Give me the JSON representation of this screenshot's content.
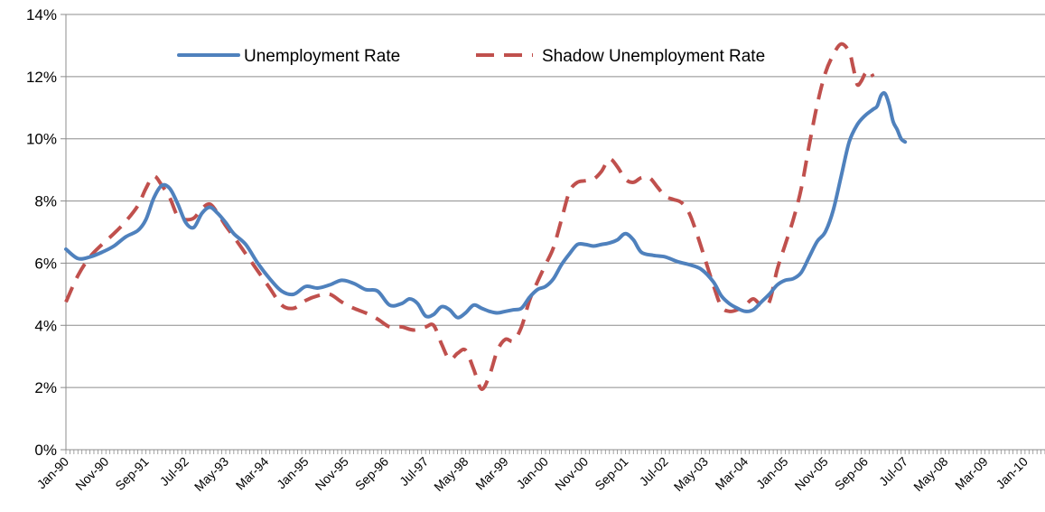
{
  "chart_data": {
    "type": "line",
    "title": "",
    "xlabel": "",
    "ylabel": "",
    "ylim": [
      0,
      14
    ],
    "y_ticks": [
      "0%",
      "2%",
      "4%",
      "6%",
      "8%",
      "10%",
      "12%",
      "14%"
    ],
    "x_tick_labels": [
      "Jan-90",
      "Nov-90",
      "Sep-91",
      "Jul-92",
      "May-93",
      "Mar-94",
      "Jan-95",
      "Nov-95",
      "Sep-96",
      "Jul-97",
      "May-98",
      "Mar-99",
      "Jan-00",
      "Nov-00",
      "Sep-01",
      "Jul-02",
      "May-03",
      "Mar-04",
      "Jan-05",
      "Nov-05",
      "Sep-06",
      "Jul-07",
      "May-08",
      "Mar-09",
      "Jan-10"
    ],
    "grid": "horizontal",
    "legend_position": "top",
    "x_index_note_months": 245,
    "series": [
      {
        "name": "Unemployment Rate",
        "color": "#4f81bd",
        "style": "solid",
        "points": [
          [
            0,
            6.45
          ],
          [
            3,
            6.15
          ],
          [
            6,
            6.2
          ],
          [
            9,
            6.35
          ],
          [
            12,
            6.55
          ],
          [
            15,
            6.85
          ],
          [
            18,
            7.05
          ],
          [
            20,
            7.4
          ],
          [
            22,
            8.1
          ],
          [
            24,
            8.5
          ],
          [
            26,
            8.4
          ],
          [
            28,
            7.9
          ],
          [
            30,
            7.3
          ],
          [
            32,
            7.15
          ],
          [
            34,
            7.6
          ],
          [
            36,
            7.8
          ],
          [
            38,
            7.6
          ],
          [
            40,
            7.3
          ],
          [
            42,
            6.95
          ],
          [
            45,
            6.6
          ],
          [
            48,
            6.0
          ],
          [
            51,
            5.5
          ],
          [
            54,
            5.1
          ],
          [
            57,
            5.0
          ],
          [
            60,
            5.25
          ],
          [
            63,
            5.2
          ],
          [
            66,
            5.3
          ],
          [
            69,
            5.45
          ],
          [
            72,
            5.35
          ],
          [
            75,
            5.15
          ],
          [
            78,
            5.1
          ],
          [
            81,
            4.65
          ],
          [
            84,
            4.7
          ],
          [
            86,
            4.85
          ],
          [
            88,
            4.7
          ],
          [
            90,
            4.3
          ],
          [
            92,
            4.35
          ],
          [
            94,
            4.6
          ],
          [
            96,
            4.5
          ],
          [
            98,
            4.25
          ],
          [
            100,
            4.4
          ],
          [
            102,
            4.65
          ],
          [
            104,
            4.55
          ],
          [
            106,
            4.45
          ],
          [
            108,
            4.4
          ],
          [
            110,
            4.45
          ],
          [
            112,
            4.5
          ],
          [
            114,
            4.55
          ],
          [
            116,
            4.9
          ],
          [
            118,
            5.15
          ],
          [
            120,
            5.25
          ],
          [
            122,
            5.5
          ],
          [
            124,
            5.95
          ],
          [
            126,
            6.3
          ],
          [
            128,
            6.6
          ],
          [
            130,
            6.6
          ],
          [
            132,
            6.55
          ],
          [
            134,
            6.6
          ],
          [
            136,
            6.65
          ],
          [
            138,
            6.75
          ],
          [
            140,
            6.95
          ],
          [
            142,
            6.75
          ],
          [
            144,
            6.35
          ],
          [
            147,
            6.25
          ],
          [
            150,
            6.2
          ],
          [
            153,
            6.05
          ],
          [
            156,
            5.95
          ],
          [
            159,
            5.8
          ],
          [
            162,
            5.4
          ],
          [
            164,
            4.95
          ],
          [
            166,
            4.7
          ],
          [
            168,
            4.55
          ],
          [
            170,
            4.45
          ],
          [
            172,
            4.5
          ],
          [
            174,
            4.75
          ],
          [
            176,
            5.0
          ],
          [
            178,
            5.3
          ],
          [
            180,
            5.45
          ],
          [
            182,
            5.5
          ],
          [
            184,
            5.7
          ],
          [
            186,
            6.2
          ],
          [
            188,
            6.7
          ],
          [
            190,
            7.0
          ],
          [
            192,
            7.7
          ],
          [
            194,
            8.8
          ],
          [
            196,
            9.9
          ],
          [
            198,
            10.45
          ],
          [
            200,
            10.75
          ],
          [
            202,
            10.95
          ],
          [
            203,
            11.05
          ],
          [
            204,
            11.4
          ],
          [
            205,
            11.45
          ],
          [
            206,
            11.1
          ],
          [
            207,
            10.55
          ],
          [
            208,
            10.3
          ],
          [
            209,
            10.0
          ],
          [
            210,
            9.9
          ]
        ]
      },
      {
        "name": "Shadow Unemployment Rate",
        "color": "#c0504d",
        "style": "dashed",
        "points": [
          [
            0,
            4.75
          ],
          [
            3,
            5.6
          ],
          [
            6,
            6.2
          ],
          [
            9,
            6.6
          ],
          [
            12,
            6.95
          ],
          [
            15,
            7.35
          ],
          [
            18,
            7.85
          ],
          [
            20,
            8.4
          ],
          [
            22,
            8.8
          ],
          [
            24,
            8.5
          ],
          [
            26,
            8.1
          ],
          [
            28,
            7.5
          ],
          [
            30,
            7.4
          ],
          [
            32,
            7.45
          ],
          [
            34,
            7.75
          ],
          [
            36,
            7.9
          ],
          [
            38,
            7.6
          ],
          [
            40,
            7.2
          ],
          [
            42,
            6.85
          ],
          [
            45,
            6.3
          ],
          [
            48,
            5.75
          ],
          [
            51,
            5.2
          ],
          [
            54,
            4.65
          ],
          [
            57,
            4.55
          ],
          [
            60,
            4.8
          ],
          [
            63,
            4.95
          ],
          [
            66,
            5.0
          ],
          [
            69,
            4.75
          ],
          [
            72,
            4.55
          ],
          [
            75,
            4.4
          ],
          [
            78,
            4.2
          ],
          [
            81,
            3.95
          ],
          [
            84,
            3.95
          ],
          [
            87,
            3.85
          ],
          [
            90,
            3.95
          ],
          [
            92,
            4.0
          ],
          [
            94,
            3.4
          ],
          [
            96,
            2.9
          ],
          [
            98,
            3.1
          ],
          [
            100,
            3.2
          ],
          [
            102,
            2.6
          ],
          [
            104,
            1.95
          ],
          [
            106,
            2.4
          ],
          [
            108,
            3.2
          ],
          [
            110,
            3.55
          ],
          [
            112,
            3.5
          ],
          [
            114,
            3.95
          ],
          [
            116,
            4.8
          ],
          [
            118,
            5.4
          ],
          [
            120,
            5.95
          ],
          [
            122,
            6.5
          ],
          [
            124,
            7.4
          ],
          [
            126,
            8.3
          ],
          [
            128,
            8.6
          ],
          [
            130,
            8.65
          ],
          [
            132,
            8.7
          ],
          [
            134,
            8.95
          ],
          [
            136,
            9.35
          ],
          [
            138,
            9.1
          ],
          [
            140,
            8.7
          ],
          [
            142,
            8.6
          ],
          [
            144,
            8.75
          ],
          [
            146,
            8.75
          ],
          [
            148,
            8.45
          ],
          [
            150,
            8.15
          ],
          [
            152,
            8.05
          ],
          [
            154,
            7.95
          ],
          [
            156,
            7.6
          ],
          [
            158,
            6.9
          ],
          [
            160,
            6.1
          ],
          [
            162,
            5.3
          ],
          [
            164,
            4.6
          ],
          [
            166,
            4.45
          ],
          [
            168,
            4.5
          ],
          [
            170,
            4.65
          ],
          [
            172,
            4.85
          ],
          [
            174,
            4.65
          ],
          [
            176,
            4.75
          ],
          [
            178,
            5.8
          ],
          [
            180,
            6.6
          ],
          [
            182,
            7.4
          ],
          [
            184,
            8.4
          ],
          [
            186,
            9.8
          ],
          [
            188,
            11.1
          ],
          [
            190,
            12.1
          ],
          [
            192,
            12.7
          ],
          [
            194,
            13.05
          ],
          [
            196,
            12.8
          ],
          [
            197,
            12.3
          ],
          [
            198,
            11.75
          ],
          [
            199,
            11.85
          ],
          [
            200,
            12.1
          ],
          [
            201,
            12.2
          ],
          [
            202,
            12.0
          ]
        ]
      }
    ]
  }
}
